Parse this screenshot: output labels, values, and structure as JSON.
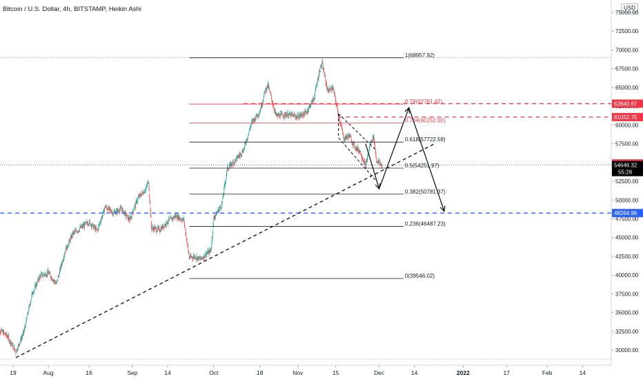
{
  "header": {
    "symbol_title": "Bitcoin / U.S. Dollar, 4h, BITSTAMP, Heikin Ashi",
    "currency": "USD"
  },
  "colors": {
    "bull": "#26a69a",
    "bear": "#ef5350",
    "fib_red": "#f23645",
    "fib_black": "#131722",
    "dash_red": "#f23645",
    "dash_blue": "#2962ff",
    "label_red": "#f23645",
    "label_blue": "#2962ff",
    "label_last": "#000000"
  },
  "chart_data": {
    "type": "candlestick",
    "title": "Bitcoin / U.S. Dollar, 4h, BITSTAMP, Heikin Ashi",
    "ylim": [
      28500,
      76000
    ],
    "y_ticks": [
      30000,
      32500,
      35000,
      37500,
      40000,
      42500,
      45000,
      47500,
      50000,
      52500,
      55000,
      57500,
      60000,
      62500,
      65000,
      67500,
      70000,
      72500,
      75000
    ],
    "y_tick_labels": [
      "30000.00",
      "32500.00",
      "35000.00",
      "37500.00",
      "40000.00",
      "42500.00",
      "45000.00",
      "47500.00",
      "50000.00",
      "52500.00",
      "55000.00",
      "57500.00",
      "60000.00",
      "62500.00",
      "65000.00",
      "67500.00",
      "70000.00",
      "72500.00",
      "75000.00"
    ],
    "x_ticks": [
      {
        "label": "19",
        "date": "2021-07-19"
      },
      {
        "label": "Aug",
        "date": "2021-08-01"
      },
      {
        "label": "16",
        "date": "2021-08-16"
      },
      {
        "label": "Sep",
        "date": "2021-09-01"
      },
      {
        "label": "14",
        "date": "2021-09-14"
      },
      {
        "label": "Oct",
        "date": "2021-10-01"
      },
      {
        "label": "18",
        "date": "2021-10-18"
      },
      {
        "label": "Nov",
        "date": "2021-11-01"
      },
      {
        "label": "15",
        "date": "2021-11-15"
      },
      {
        "label": "Dec",
        "date": "2021-12-01"
      },
      {
        "label": "14",
        "date": "2021-12-14"
      },
      {
        "label": "2022",
        "date": "2022-01-01"
      },
      {
        "label": "17",
        "date": "2022-01-17"
      },
      {
        "label": "Feb",
        "date": "2022-02-01"
      },
      {
        "label": "14",
        "date": "2022-02-14"
      }
    ],
    "price_path": [
      [
        "2021-07-13",
        33100
      ],
      [
        "2021-07-17",
        31800
      ],
      [
        "2021-07-20",
        29800
      ],
      [
        "2021-07-23",
        32400
      ],
      [
        "2021-07-26",
        37500
      ],
      [
        "2021-07-29",
        39900
      ],
      [
        "2021-08-01",
        40300
      ],
      [
        "2021-08-04",
        38800
      ],
      [
        "2021-08-07",
        43000
      ],
      [
        "2021-08-10",
        45500
      ],
      [
        "2021-08-13",
        46300
      ],
      [
        "2021-08-16",
        47100
      ],
      [
        "2021-08-19",
        45900
      ],
      [
        "2021-08-22",
        49100
      ],
      [
        "2021-08-25",
        48300
      ],
      [
        "2021-08-28",
        48800
      ],
      [
        "2021-08-31",
        47300
      ],
      [
        "2021-09-03",
        50200
      ],
      [
        "2021-09-06",
        51500
      ],
      [
        "2021-09-07",
        52500
      ],
      [
        "2021-09-08",
        46300
      ],
      [
        "2021-09-11",
        46000
      ],
      [
        "2021-09-14",
        47100
      ],
      [
        "2021-09-17",
        47900
      ],
      [
        "2021-09-20",
        47300
      ],
      [
        "2021-09-22",
        42300
      ],
      [
        "2021-09-24",
        42500
      ],
      [
        "2021-09-26",
        42100
      ],
      [
        "2021-09-28",
        42700
      ],
      [
        "2021-09-30",
        43300
      ],
      [
        "2021-10-01",
        47600
      ],
      [
        "2021-10-04",
        49400
      ],
      [
        "2021-10-06",
        54200
      ],
      [
        "2021-10-09",
        55300
      ],
      [
        "2021-10-12",
        56700
      ],
      [
        "2021-10-15",
        60300
      ],
      [
        "2021-10-18",
        61800
      ],
      [
        "2021-10-20",
        64600
      ],
      [
        "2021-10-21",
        65300
      ],
      [
        "2021-10-24",
        61200
      ],
      [
        "2021-10-28",
        61400
      ],
      [
        "2021-11-01",
        61100
      ],
      [
        "2021-11-04",
        61600
      ],
      [
        "2021-11-07",
        63600
      ],
      [
        "2021-11-09",
        67200
      ],
      [
        "2021-11-10",
        68200
      ],
      [
        "2021-11-12",
        64600
      ],
      [
        "2021-11-14",
        64900
      ],
      [
        "2021-11-16",
        61400
      ],
      [
        "2021-11-18",
        58200
      ],
      [
        "2021-11-20",
        58600
      ],
      [
        "2021-11-22",
        57100
      ],
      [
        "2021-11-24",
        56500
      ],
      [
        "2021-11-26",
        54500
      ],
      [
        "2021-11-28",
        57800
      ],
      [
        "2021-11-29",
        58400
      ],
      [
        "2021-11-30",
        55300
      ],
      [
        "2021-12-02",
        54646.32
      ]
    ],
    "fib_levels": [
      {
        "label": "1(68957.92)",
        "value": 68957.92,
        "color": "black"
      },
      {
        "label": "0.79(62781.42)",
        "value": 62781.42,
        "color": "red"
      },
      {
        "label": "0.704(60252.00)",
        "value": 60252.0,
        "color": "red"
      },
      {
        "label": "0.618(57722.58)",
        "value": 57722.58,
        "color": "black"
      },
      {
        "label": "0.5(54251.97)",
        "value": 54251.97,
        "color": "black"
      },
      {
        "label": "0.382(50781.37)",
        "value": 50781.37,
        "color": "black"
      },
      {
        "label": "0.236(46487.23)",
        "value": 46487.23,
        "color": "black"
      },
      {
        "label": "0(39546.02)",
        "value": 39546.02,
        "color": "black"
      }
    ],
    "fib_x_range": [
      "2021-09-22",
      "2021-12-10"
    ],
    "horizontal_lines": [
      {
        "value": 62840.67,
        "color": "red",
        "style": "dashed",
        "from": "2021-10-12",
        "label": "62840.67"
      },
      {
        "value": 61052.75,
        "color": "red",
        "style": "dashed",
        "from": "2021-11-16",
        "label": "61052.75"
      },
      {
        "value": 48264.96,
        "color": "blue",
        "style": "dashed",
        "from": "2021-07-13",
        "label": "48264.96"
      }
    ],
    "price_labels": [
      {
        "value": 54874.13,
        "label": "54874.13",
        "kind": "red"
      },
      {
        "value": 54646.32,
        "label": "54646.32",
        "sub": "55:28",
        "kind": "last"
      }
    ],
    "trendline": {
      "from": [
        "2021-07-20",
        29000
      ],
      "to": [
        "2021-12-22",
        57600
      ]
    },
    "wedge": [
      [
        [
          "2021-11-16",
          61500
        ],
        [
          "2021-11-30",
          56600
        ]
      ],
      [
        [
          "2021-11-16",
          58300
        ],
        [
          "2021-11-30",
          52500
        ]
      ],
      [
        [
          "2021-11-16",
          61500
        ],
        [
          "2021-11-16",
          58300
        ]
      ]
    ],
    "projection_path": [
      [
        "2021-11-26",
        57500
      ],
      [
        "2021-12-01",
        51500
      ],
      [
        "2021-12-12",
        62300
      ],
      [
        "2021-12-25",
        48500
      ]
    ],
    "top_dotted": 69000,
    "bottom_dotted": 29000
  }
}
